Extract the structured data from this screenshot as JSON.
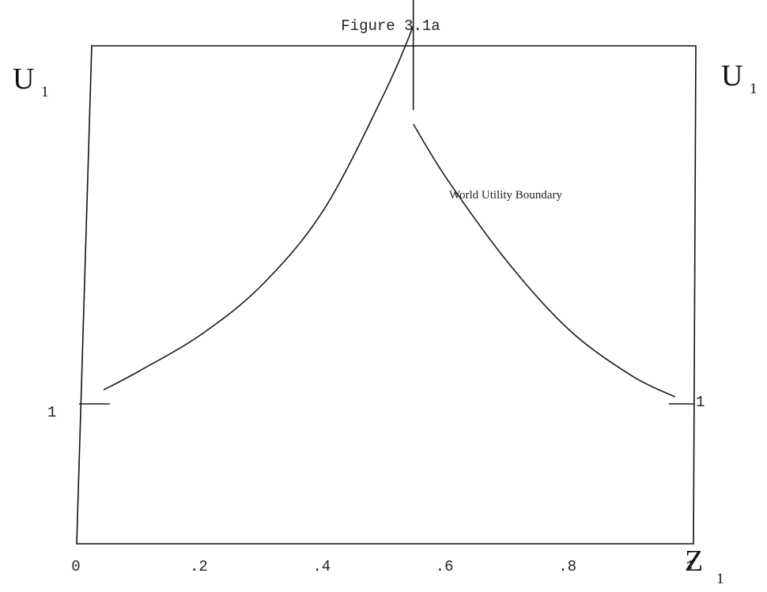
{
  "chart_data": {
    "type": "line",
    "title": "Figure 3.1a",
    "xlabel": "Z",
    "xlabel_sub": "1",
    "ylabel_left": "U",
    "ylabel_left_sub": "1",
    "ylabel_right": "U",
    "ylabel_right_sub": "1",
    "xlim": [
      0,
      1
    ],
    "x_ticks": [
      {
        "value": 0,
        "label": "0"
      },
      {
        "value": 0.2,
        "label": ".2"
      },
      {
        "value": 0.4,
        "label": ".4"
      },
      {
        "value": 0.6,
        "label": ".6"
      },
      {
        "value": 0.8,
        "label": ".8"
      },
      {
        "value": 1,
        "label": "1"
      }
    ],
    "y_reference": {
      "value": 1,
      "label_left": "1",
      "label_right": "1"
    },
    "annotation": "World Utility Boundary",
    "series": [
      {
        "label": "World Utility Boundary",
        "segments": [
          {
            "kind": "flat",
            "x": [
              0,
              0.05
            ],
            "y": [
              1,
              1
            ]
          },
          {
            "kind": "rising",
            "x": [
              0.04,
              0.1,
              0.2,
              0.3,
              0.4,
              0.5,
              0.544
            ],
            "y": [
              1.1,
              1.24,
              1.5,
              1.86,
              2.4,
              3.25,
              3.7
            ]
          },
          {
            "kind": "vertical",
            "x": [
              0.544,
              0.544
            ],
            "y": [
              3.1,
              4.9
            ]
          },
          {
            "kind": "falling",
            "x": [
              0.544,
              0.6,
              0.7,
              0.8,
              0.9,
              0.97
            ],
            "y": [
              3.0,
              2.6,
              2.0,
              1.52,
              1.2,
              1.05
            ]
          },
          {
            "kind": "flat",
            "x": [
              0.96,
              1.0
            ],
            "y": [
              1,
              1
            ]
          }
        ]
      }
    ]
  }
}
